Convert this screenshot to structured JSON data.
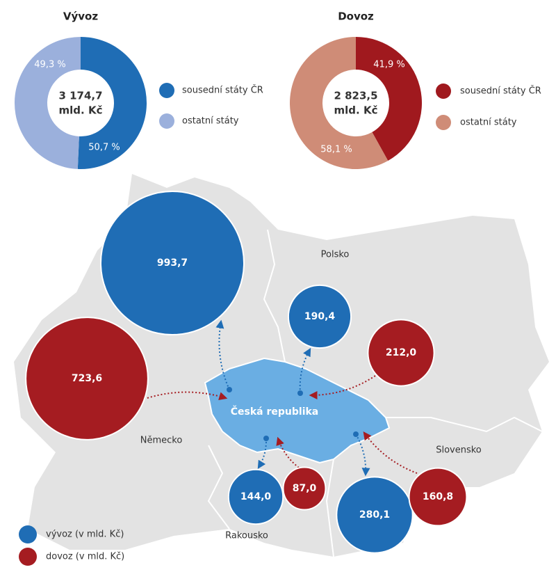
{
  "chart_data": [
    {
      "type": "pie",
      "title": "Vývoz",
      "center_text": [
        "3 174,7",
        "mld. Kč"
      ],
      "categories": [
        "sousední státy ČR",
        "ostatní státy"
      ],
      "values": [
        50.7,
        49.3
      ],
      "value_labels": [
        "50,7 %",
        "49,3 %"
      ],
      "colors": [
        "#1f6db5",
        "#9bb0dc"
      ]
    },
    {
      "type": "pie",
      "title": "Dovoz",
      "center_text": [
        "2 823,5",
        "mld. Kč"
      ],
      "categories": [
        "sousední státy ČR",
        "ostatní státy"
      ],
      "values": [
        41.9,
        58.1
      ],
      "value_labels": [
        "41,9 %",
        "58,1 %"
      ],
      "colors": [
        "#a0191e",
        "#cf8c77"
      ]
    },
    {
      "type": "bubble-map",
      "region": "Česká republika",
      "categories": [
        "Německo",
        "Polsko",
        "Rakousko",
        "Slovensko"
      ],
      "series": [
        {
          "name": "vývoz (v mld. Kč)",
          "color": "#1f6db5",
          "values": [
            993.7,
            190.4,
            144.0,
            280.1
          ],
          "value_labels": [
            "993,7",
            "190,4",
            "144,0",
            "280,1"
          ]
        },
        {
          "name": "dovoz (v mld. Kč)",
          "color": "#a51c21",
          "values": [
            723.6,
            212.0,
            87.0,
            160.8
          ],
          "value_labels": [
            "723,6",
            "212,0",
            "87,0",
            "160,8"
          ]
        }
      ]
    }
  ]
}
